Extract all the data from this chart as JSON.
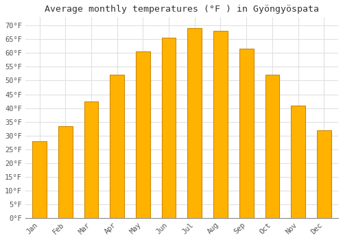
{
  "title": "Average monthly temperatures (°F ) in Gyöngyöspata",
  "months": [
    "Jan",
    "Feb",
    "Mar",
    "Apr",
    "May",
    "Jun",
    "Jul",
    "Aug",
    "Sep",
    "Oct",
    "Nov",
    "Dec"
  ],
  "values": [
    28,
    33.5,
    42.5,
    52,
    60.5,
    65.5,
    69,
    68,
    61.5,
    52,
    41,
    32
  ],
  "bar_color": "#FFB300",
  "bar_edge_color": "#CC8800",
  "background_color": "#ffffff",
  "grid_color": "#e0e0e0",
  "yticks": [
    0,
    5,
    10,
    15,
    20,
    25,
    30,
    35,
    40,
    45,
    50,
    55,
    60,
    65,
    70
  ],
  "ylim": [
    0,
    73
  ],
  "title_fontsize": 9.5,
  "tick_fontsize": 7.5
}
